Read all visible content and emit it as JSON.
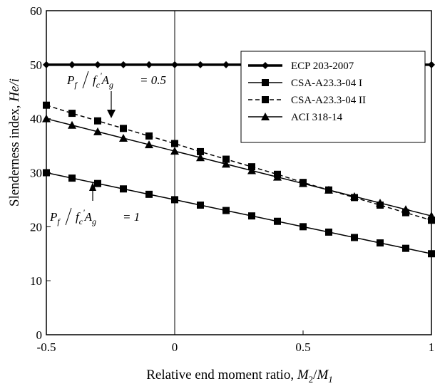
{
  "chart_data": {
    "type": "line",
    "xlabel_prefix": "Relative end moment ratio, ",
    "xlabel_var": "M",
    "xlabel_sub1": "2",
    "xlabel_var2": "M",
    "xlabel_sub2": "1",
    "ylabel_prefix": "Slenderness index, ",
    "ylabel_var": "He/i",
    "xlim": [
      -0.5,
      1.0
    ],
    "ylim": [
      0,
      60
    ],
    "x_ticks": [
      "-0.5",
      "0",
      "0.5",
      "1"
    ],
    "x_tick_values": [
      -0.5,
      0,
      0.5,
      1.0
    ],
    "y_ticks": [
      "0",
      "10",
      "20",
      "30",
      "40",
      "50",
      "60"
    ],
    "y_tick_values": [
      0,
      10,
      20,
      30,
      40,
      50,
      60
    ],
    "grid": false,
    "legend_position": "top-right",
    "x": [
      -0.5,
      -0.4,
      -0.3,
      -0.2,
      -0.1,
      0.0,
      0.1,
      0.2,
      0.3,
      0.4,
      0.5,
      0.6,
      0.7,
      0.8,
      0.9,
      1.0
    ],
    "series": [
      {
        "name": "ECP 203-2007",
        "marker": "diamond",
        "line": "bold",
        "values": [
          50,
          50,
          50,
          50,
          50,
          50,
          50,
          50,
          50,
          50,
          50,
          50,
          50,
          50,
          50,
          50
        ]
      },
      {
        "name": "CSA-A23.3-04 I",
        "marker": "square",
        "line": "solid",
        "values": [
          30,
          29,
          28,
          27,
          26,
          25,
          24,
          23,
          22,
          21,
          20,
          19,
          18,
          17,
          16,
          15
        ]
      },
      {
        "name": "CSA-A23.3-04 II",
        "marker": "square",
        "line": "dashed",
        "values": [
          42.5,
          41,
          39.6,
          38.2,
          36.8,
          35.4,
          33.9,
          32.5,
          31.1,
          29.7,
          28.2,
          26.8,
          25.4,
          24,
          22.6,
          21.2
        ]
      },
      {
        "name": "ACI 318-14",
        "marker": "triangle",
        "line": "solid",
        "values": [
          40,
          38.8,
          37.6,
          36.4,
          35.2,
          34,
          32.8,
          31.6,
          30.4,
          29.2,
          28,
          26.8,
          25.6,
          24.4,
          23.2,
          22
        ]
      }
    ],
    "annotations": [
      {
        "P": "P",
        "P_sub": "f",
        "f": "f",
        "f_sub": "c",
        "f_prime": "'",
        "A": "A",
        "A_sub": "g",
        "equals": "= 0.5"
      },
      {
        "P": "P",
        "P_sub": "f",
        "f": "f",
        "f_sub": "c",
        "f_prime": "'",
        "A": "A",
        "A_sub": "g",
        "equals": "= 1"
      }
    ]
  }
}
